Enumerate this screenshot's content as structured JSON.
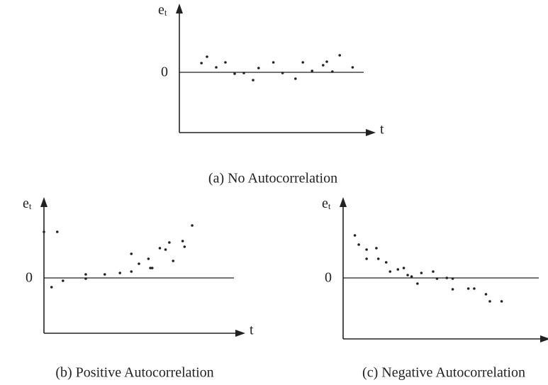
{
  "chart_data": [
    {
      "type": "scatter",
      "title": "(a) No Autocorrelation",
      "y_label": "e",
      "y_label_sub": "t",
      "x_label": "t",
      "xlim": [
        0,
        100
      ],
      "ylim": [
        -85,
        85
      ],
      "yticks": [
        0
      ],
      "color": "#222222",
      "x": [
        12,
        15,
        20,
        25,
        30,
        35,
        40,
        43,
        51,
        56,
        63,
        67,
        72,
        78,
        80,
        83,
        87,
        94
      ],
      "values": [
        13,
        22,
        7,
        14,
        -2,
        -1,
        -11,
        6,
        14,
        -1,
        -9,
        14,
        2,
        10,
        15,
        1,
        24,
        7
      ]
    },
    {
      "type": "scatter",
      "title": "(b) Positive Autocorrelation",
      "y_label": "e",
      "y_label_sub": "t",
      "x_label": "t",
      "xlim": [
        0,
        100
      ],
      "ylim": [
        -78,
        102
      ],
      "yticks": [
        0
      ],
      "color": "#222222",
      "x": [
        0,
        7,
        4,
        10,
        22,
        22,
        32,
        40,
        46,
        50,
        46,
        55,
        56,
        57,
        61,
        64,
        66,
        68,
        73,
        74,
        78
      ],
      "values": [
        65,
        65,
        -13,
        -4,
        -1,
        5,
        5,
        7,
        9,
        20,
        34,
        27,
        14,
        14,
        42,
        40,
        50,
        24,
        52,
        44,
        74
      ]
    },
    {
      "type": "scatter",
      "title": "(c) Negative Autocorrelation",
      "y_label": "e",
      "y_label_sub": "t",
      "x_label": "t",
      "xlim": [
        0,
        100
      ],
      "ylim": [
        -86,
        102
      ],
      "yticks": [
        0
      ],
      "color": "#222222",
      "x": [
        6,
        8,
        12,
        17,
        12,
        18,
        22,
        24,
        28,
        31,
        33,
        35,
        40,
        38,
        46,
        48,
        53,
        56,
        56,
        64,
        67,
        73,
        75,
        81
      ],
      "values": [
        60,
        47,
        40,
        42,
        27,
        27,
        22,
        9,
        12,
        14,
        4,
        2,
        7,
        -8,
        9,
        -1,
        0,
        -1,
        -16,
        -15,
        -15,
        -23,
        -33,
        -33
      ]
    }
  ]
}
